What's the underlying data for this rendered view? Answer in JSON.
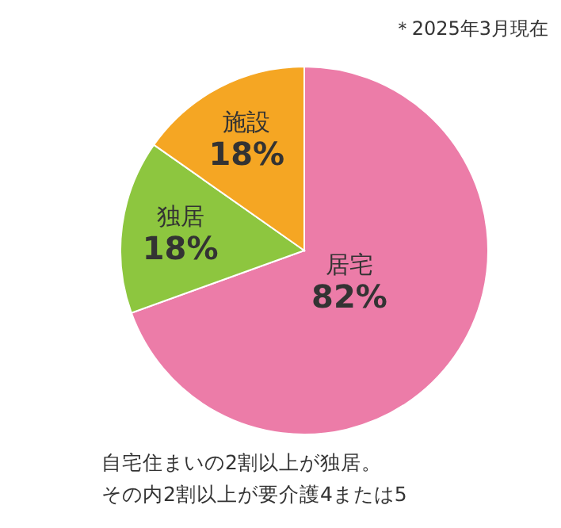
{
  "chart_data": {
    "type": "pie",
    "title": "＊2025年3月現在",
    "categories": [
      "居宅",
      "独居",
      "施設"
    ],
    "values": [
      82,
      18,
      18
    ],
    "value_labels": [
      "82%",
      "18%",
      "18%"
    ],
    "colors": [
      "#ec7ca8",
      "#8dc63f",
      "#f5a623"
    ],
    "annotations": [
      "自宅住まいの2割以上が独居。",
      "その内2割以上が要介護4または5"
    ]
  }
}
